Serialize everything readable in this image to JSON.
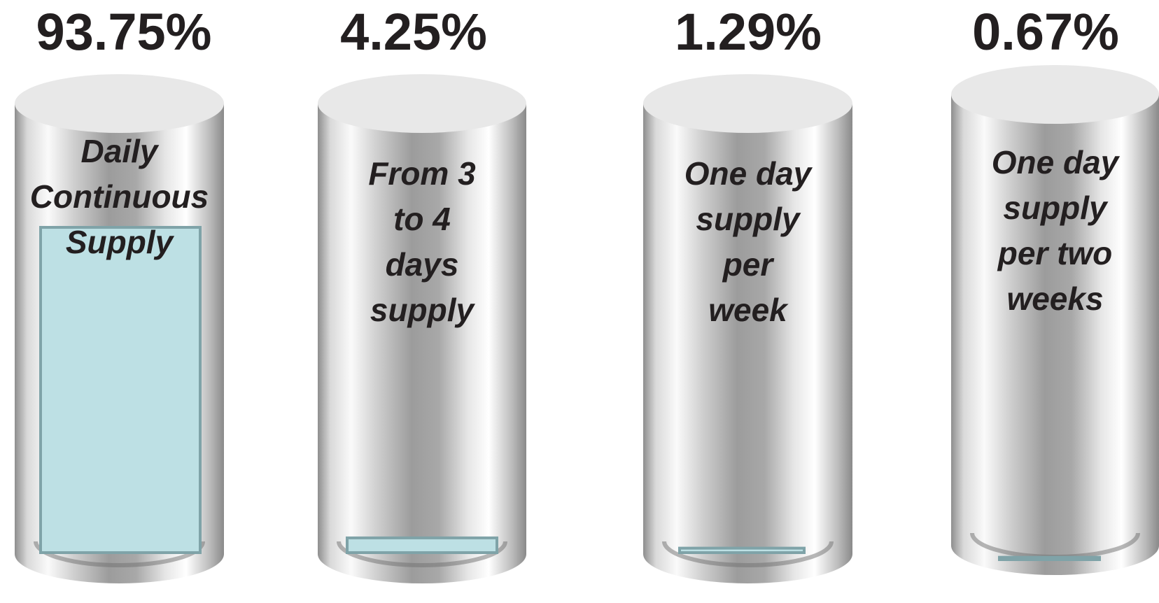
{
  "chart_data": {
    "type": "cylinder",
    "categories": [
      "Daily Continuous Supply",
      "From 3 to 4 days supply",
      "One day supply per week",
      "One day supply per two weeks"
    ],
    "values": [
      93.75,
      4.25,
      1.29,
      0.67
    ],
    "value_labels": [
      "93.75%",
      "4.25%",
      "1.29%",
      "0.67%"
    ],
    "color": "#bde0e4"
  }
}
